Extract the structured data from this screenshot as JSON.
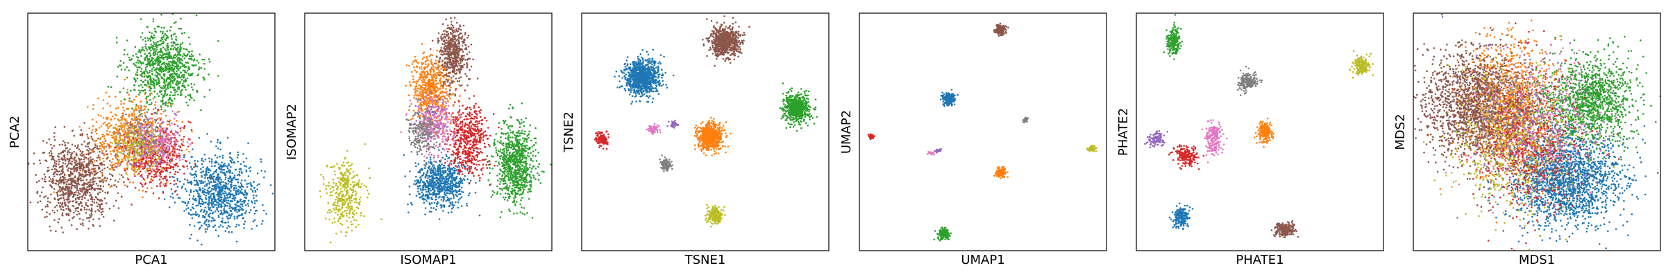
{
  "chart_data": [
    {
      "type": "scatter",
      "xlabel": "PCA1",
      "ylabel": "PCA2",
      "xlim": [
        0,
        100
      ],
      "ylim": [
        0,
        100
      ],
      "grid": false,
      "ticks": false,
      "series": [
        {
          "color": "#1f77b4",
          "cx": 78,
          "cy": 25,
          "sx": 8,
          "sy": 8,
          "n": 900
        },
        {
          "color": "#ff7f0e",
          "cx": 42,
          "cy": 47,
          "sx": 8,
          "sy": 8,
          "n": 700
        },
        {
          "color": "#2ca02c",
          "cx": 55,
          "cy": 77,
          "sx": 7,
          "sy": 8,
          "n": 900
        },
        {
          "color": "#d62728",
          "cx": 52,
          "cy": 40,
          "sx": 6,
          "sy": 7,
          "n": 450
        },
        {
          "color": "#9467bd",
          "cx": 48,
          "cy": 44,
          "sx": 6,
          "sy": 6,
          "n": 120
        },
        {
          "color": "#8c564b",
          "cx": 20,
          "cy": 30,
          "sx": 7,
          "sy": 8,
          "n": 900
        },
        {
          "color": "#e377c2",
          "cx": 53,
          "cy": 45,
          "sx": 5,
          "sy": 5,
          "n": 200
        },
        {
          "color": "#7f7f7f",
          "cx": 46,
          "cy": 48,
          "sx": 5,
          "sy": 5,
          "n": 150
        },
        {
          "color": "#bcbd22",
          "cx": 44,
          "cy": 44,
          "sx": 5,
          "sy": 5,
          "n": 150
        }
      ]
    },
    {
      "type": "scatter",
      "xlabel": "ISOMAP1",
      "ylabel": "ISOMAP2",
      "xlim": [
        0,
        100
      ],
      "ylim": [
        0,
        100
      ],
      "grid": false,
      "ticks": false,
      "series": [
        {
          "color": "#1f77b4",
          "cx": 55,
          "cy": 28,
          "sx": 5,
          "sy": 5,
          "n": 700
        },
        {
          "color": "#ff7f0e",
          "cx": 51,
          "cy": 68,
          "sx": 4,
          "sy": 7,
          "n": 600
        },
        {
          "color": "#2ca02c",
          "cx": 85,
          "cy": 36,
          "sx": 4,
          "sy": 8,
          "n": 800
        },
        {
          "color": "#d62728",
          "cx": 66,
          "cy": 47,
          "sx": 4,
          "sy": 7,
          "n": 500
        },
        {
          "color": "#9467bd",
          "cx": 52,
          "cy": 55,
          "sx": 3,
          "sy": 4,
          "n": 120
        },
        {
          "color": "#8c564b",
          "cx": 60,
          "cy": 83,
          "sx": 3,
          "sy": 6,
          "n": 500
        },
        {
          "color": "#e377c2",
          "cx": 53,
          "cy": 52,
          "sx": 4,
          "sy": 6,
          "n": 250
        },
        {
          "color": "#7f7f7f",
          "cx": 47,
          "cy": 50,
          "sx": 3,
          "sy": 5,
          "n": 200
        },
        {
          "color": "#bcbd22",
          "cx": 16,
          "cy": 24,
          "sx": 4,
          "sy": 7,
          "n": 350
        }
      ]
    },
    {
      "type": "scatter",
      "xlabel": "TSNE1",
      "ylabel": "TSNE2",
      "xlim": [
        0,
        100
      ],
      "ylim": [
        0,
        100
      ],
      "grid": false,
      "ticks": false,
      "series": [
        {
          "color": "#1f77b4",
          "cx": 24,
          "cy": 73,
          "sx": 3.5,
          "sy": 3.8,
          "n": 900
        },
        {
          "color": "#ff7f0e",
          "cx": 52,
          "cy": 48,
          "sx": 2.5,
          "sy": 2.8,
          "n": 600
        },
        {
          "color": "#2ca02c",
          "cx": 87,
          "cy": 60,
          "sx": 2.7,
          "sy": 3.0,
          "n": 600
        },
        {
          "color": "#d62728",
          "cx": 8,
          "cy": 47,
          "sx": 1.2,
          "sy": 1.3,
          "n": 120
        },
        {
          "color": "#9467bd",
          "cx": 37,
          "cy": 53,
          "sx": 0.8,
          "sy": 0.8,
          "n": 40
        },
        {
          "color": "#8c564b",
          "cx": 58,
          "cy": 88,
          "sx": 3.0,
          "sy": 3.2,
          "n": 700
        },
        {
          "color": "#e377c2",
          "cx": 29,
          "cy": 51,
          "sx": 1.2,
          "sy": 1.0,
          "n": 70
        },
        {
          "color": "#7f7f7f",
          "cx": 34,
          "cy": 36,
          "sx": 1.2,
          "sy": 1.2,
          "n": 90
        },
        {
          "color": "#bcbd22",
          "cx": 54,
          "cy": 15,
          "sx": 1.6,
          "sy": 1.6,
          "n": 200
        }
      ]
    },
    {
      "type": "scatter",
      "xlabel": "UMAP1",
      "ylabel": "UMAP2",
      "xlim": [
        0,
        100
      ],
      "ylim": [
        0,
        100
      ],
      "grid": false,
      "ticks": false,
      "series": [
        {
          "color": "#1f77b4",
          "cx": 36,
          "cy": 64,
          "sx": 1.2,
          "sy": 1.2,
          "n": 200
        },
        {
          "color": "#ff7f0e",
          "cx": 57,
          "cy": 33,
          "sx": 1.0,
          "sy": 1.0,
          "n": 150
        },
        {
          "color": "#2ca02c",
          "cx": 34,
          "cy": 7,
          "sx": 1.1,
          "sy": 1.1,
          "n": 150
        },
        {
          "color": "#d62728",
          "cx": 5,
          "cy": 48,
          "sx": 0.5,
          "sy": 0.5,
          "n": 40
        },
        {
          "color": "#9467bd",
          "cx": 32,
          "cy": 42,
          "sx": 0.6,
          "sy": 0.3,
          "n": 20
        },
        {
          "color": "#8c564b",
          "cx": 57,
          "cy": 93,
          "sx": 1.0,
          "sy": 1.0,
          "n": 150
        },
        {
          "color": "#e377c2",
          "cx": 29,
          "cy": 41,
          "sx": 0.6,
          "sy": 0.3,
          "n": 20
        },
        {
          "color": "#7f7f7f",
          "cx": 67,
          "cy": 55,
          "sx": 0.5,
          "sy": 0.5,
          "n": 30
        },
        {
          "color": "#bcbd22",
          "cx": 94,
          "cy": 43,
          "sx": 0.7,
          "sy": 0.6,
          "n": 50
        }
      ]
    },
    {
      "type": "scatter",
      "xlabel": "PHATE1",
      "ylabel": "PHATE2",
      "xlim": [
        0,
        100
      ],
      "ylim": [
        0,
        100
      ],
      "grid": false,
      "ticks": false,
      "series": [
        {
          "color": "#1f77b4",
          "cx": 18,
          "cy": 14,
          "sx": 1.5,
          "sy": 2.2,
          "n": 200
        },
        {
          "color": "#ff7f0e",
          "cx": 52,
          "cy": 50,
          "sx": 1.5,
          "sy": 2.0,
          "n": 200
        },
        {
          "color": "#2ca02c",
          "cx": 15,
          "cy": 88,
          "sx": 1.3,
          "sy": 3.0,
          "n": 200
        },
        {
          "color": "#d62728",
          "cx": 20,
          "cy": 40,
          "sx": 2.5,
          "sy": 2.0,
          "n": 180
        },
        {
          "color": "#9467bd",
          "cx": 8,
          "cy": 47,
          "sx": 1.8,
          "sy": 1.8,
          "n": 100
        },
        {
          "color": "#8c564b",
          "cx": 60,
          "cy": 9,
          "sx": 2.0,
          "sy": 1.5,
          "n": 180
        },
        {
          "color": "#e377c2",
          "cx": 31,
          "cy": 47,
          "sx": 1.8,
          "sy": 3.5,
          "n": 200
        },
        {
          "color": "#7f7f7f",
          "cx": 45,
          "cy": 71,
          "sx": 2.0,
          "sy": 1.8,
          "n": 180
        },
        {
          "color": "#bcbd22",
          "cx": 91,
          "cy": 78,
          "sx": 1.6,
          "sy": 2.0,
          "n": 180
        }
      ]
    },
    {
      "type": "scatter",
      "xlabel": "MDS1",
      "ylabel": "MDS2",
      "xlim": [
        0,
        100
      ],
      "ylim": [
        0,
        100
      ],
      "grid": false,
      "ticks": false,
      "series": [
        {
          "color": "#1f77b4",
          "cx": 62,
          "cy": 30,
          "sx": 11,
          "sy": 10,
          "n": 1800
        },
        {
          "color": "#ff7f0e",
          "cx": 38,
          "cy": 60,
          "sx": 9,
          "sy": 14,
          "n": 1200
        },
        {
          "color": "#2ca02c",
          "cx": 72,
          "cy": 63,
          "sx": 9,
          "sy": 9,
          "n": 1200
        },
        {
          "color": "#d62728",
          "cx": 46,
          "cy": 45,
          "sx": 10,
          "sy": 14,
          "n": 700
        },
        {
          "color": "#9467bd",
          "cx": 45,
          "cy": 55,
          "sx": 14,
          "sy": 14,
          "n": 250
        },
        {
          "color": "#8c564b",
          "cx": 24,
          "cy": 62,
          "sx": 10,
          "sy": 11,
          "n": 1400
        },
        {
          "color": "#e377c2",
          "cx": 50,
          "cy": 55,
          "sx": 12,
          "sy": 14,
          "n": 350
        },
        {
          "color": "#7f7f7f",
          "cx": 42,
          "cy": 55,
          "sx": 13,
          "sy": 13,
          "n": 300
        },
        {
          "color": "#bcbd22",
          "cx": 40,
          "cy": 45,
          "sx": 13,
          "sy": 15,
          "n": 500
        }
      ]
    }
  ]
}
